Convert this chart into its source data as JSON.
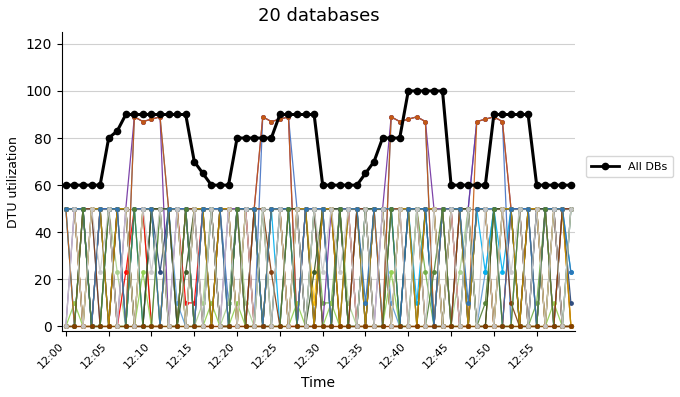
{
  "title": "20 databases",
  "xlabel": "Time",
  "ylabel": "DTU utilization",
  "ylim": [
    -2,
    125
  ],
  "yticks": [
    0,
    20,
    40,
    60,
    80,
    100,
    120
  ],
  "time_labels": [
    "12:00",
    "12:05",
    "12:10",
    "12:15",
    "12:20",
    "12:25",
    "12:30",
    "12:35",
    "12:40",
    "12:45",
    "12:50",
    "12:55"
  ],
  "n_points": 60,
  "tick_positions": [
    0,
    5,
    10,
    15,
    20,
    25,
    30,
    35,
    40,
    45,
    50,
    55
  ],
  "background_color": "#FFFFFF",
  "legend_label": "All DBs",
  "db_colors": [
    "#4472C4",
    "#ED7D31",
    "#70AD47",
    "#FFC000",
    "#5B9BD5",
    "#A9D18E",
    "#FF0000",
    "#7030A0",
    "#00B0F0",
    "#92D050",
    "#808080",
    "#C55A11",
    "#264478",
    "#843C0C",
    "#375623",
    "#BF8F00",
    "#2E75B6",
    "#538135",
    "#833C00",
    "#C9C9C9"
  ],
  "all_dbs": [
    60,
    60,
    60,
    60,
    60,
    80,
    83,
    90,
    90,
    90,
    90,
    90,
    90,
    90,
    90,
    70,
    65,
    60,
    60,
    60,
    80,
    80,
    80,
    80,
    80,
    90,
    90,
    90,
    90,
    90,
    60,
    60,
    60,
    60,
    60,
    65,
    70,
    80,
    80,
    80,
    100,
    100,
    100,
    100,
    100,
    60,
    60,
    60,
    60,
    60,
    90,
    90,
    90,
    90,
    90,
    60,
    60,
    60,
    60,
    60
  ]
}
